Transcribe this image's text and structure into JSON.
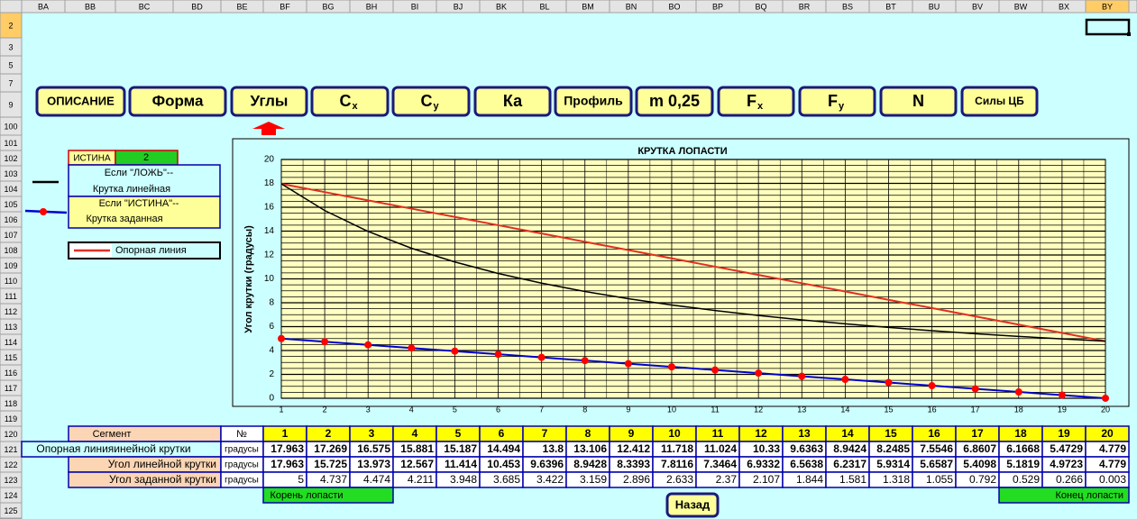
{
  "columns": [
    "BA",
    "BB",
    "BC",
    "BD",
    "BE",
    "BF",
    "BG",
    "BH",
    "BI",
    "BJ",
    "BK",
    "BL",
    "BM",
    "BN",
    "BO",
    "BP",
    "BQ",
    "BR",
    "BS",
    "BT",
    "BU",
    "BV",
    "BW",
    "BX",
    "BY"
  ],
  "rows": [
    2,
    3,
    5,
    7,
    9,
    100,
    101,
    102,
    103,
    104,
    105,
    106,
    107,
    108,
    109,
    110,
    111,
    112,
    113,
    114,
    115,
    116,
    117,
    118,
    119,
    120,
    121,
    122,
    123,
    124,
    125
  ],
  "buttons": [
    {
      "label": "ОПИСАНИЕ"
    },
    {
      "label": "Форма"
    },
    {
      "label": "Углы"
    },
    {
      "label": "C",
      "sub": "x"
    },
    {
      "label": "C",
      "sub": "y"
    },
    {
      "label": "Ка"
    },
    {
      "label": "Профиль"
    },
    {
      "label": "m 0,25"
    },
    {
      "label": "F",
      "sub": "x"
    },
    {
      "label": "F",
      "sub": "y"
    },
    {
      "label": "N"
    },
    {
      "label": "Силы ЦБ"
    }
  ],
  "switch": {
    "label": "ИСТИНА",
    "value": 2
  },
  "legend": {
    "false_rule": "Если \"ЛОЖЬ\"--",
    "false_text": "Крутка линейная",
    "true_rule": "Если \"ИСТИНА\"--",
    "true_text": "Крутка заданная",
    "reference": "Опорная линия"
  },
  "chart": {
    "type": "line",
    "title": "КРУТКА ЛОПАСТИ",
    "y_label": "Угол крутки   (градусы)",
    "x": [
      1,
      2,
      3,
      4,
      5,
      6,
      7,
      8,
      9,
      10,
      11,
      12,
      13,
      14,
      15,
      16,
      17,
      18,
      19,
      20
    ],
    "xlim": [
      1,
      20
    ],
    "xticks": [
      1,
      2,
      3,
      4,
      5,
      6,
      7,
      8,
      9,
      10,
      11,
      12,
      13,
      14,
      15,
      16,
      17,
      18,
      19,
      20
    ],
    "ylim": [
      0,
      20
    ],
    "yticks": [
      0,
      2,
      4,
      6,
      8,
      10,
      12,
      14,
      16,
      18,
      20
    ],
    "grid": true,
    "series": [
      {
        "name": "Опорная линияинейной крутки",
        "color": "#e03020",
        "values": [
          17.963,
          17.269,
          16.575,
          15.881,
          15.187,
          14.494,
          13.8,
          13.106,
          12.412,
          11.718,
          11.024,
          10.33,
          9.6363,
          8.9424,
          8.2485,
          7.5546,
          6.8607,
          6.1668,
          5.4729,
          4.779
        ]
      },
      {
        "name": "Угол линейной крутки",
        "color": "#000000",
        "values": [
          17.963,
          15.725,
          13.973,
          12.567,
          11.414,
          10.453,
          9.6396,
          8.9428,
          8.3393,
          7.8116,
          7.3464,
          6.9332,
          6.5638,
          6.2317,
          5.9314,
          5.6587,
          5.4098,
          5.1819,
          4.9723,
          4.779
        ]
      },
      {
        "name": "Угол заданной крутки",
        "color": "#0000cc",
        "marker_color": "#ff0000",
        "values": [
          5,
          4.737,
          4.474,
          4.211,
          3.948,
          3.685,
          3.422,
          3.159,
          2.896,
          2.633,
          2.37,
          2.107,
          1.844,
          1.581,
          1.318,
          1.055,
          0.792,
          0.529,
          0.266,
          0.003
        ]
      }
    ]
  },
  "table": {
    "segment": "Сегмент",
    "number": "№",
    "units": [
      "градусы",
      "градусы",
      "градусы"
    ]
  },
  "footer": {
    "root": "Корень лопасти",
    "tip": "Конец лопасти",
    "back": "Назад"
  }
}
